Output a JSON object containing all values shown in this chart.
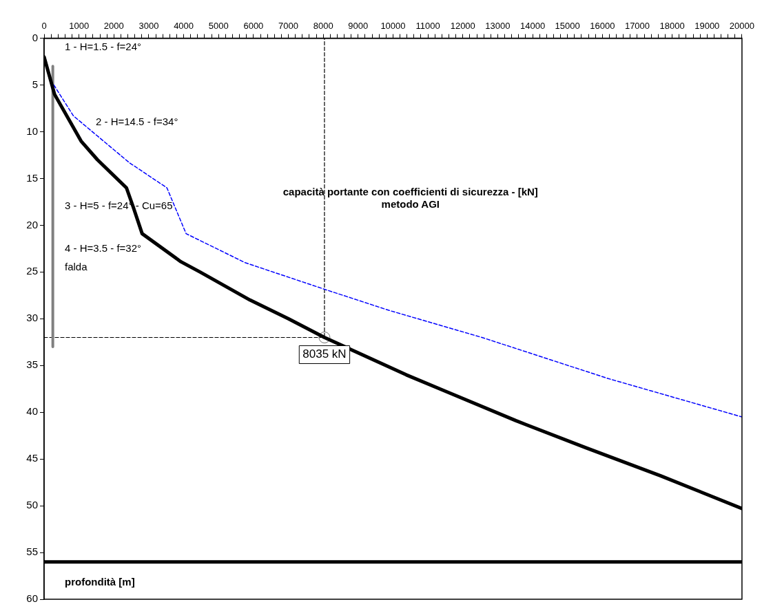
{
  "chart_data": {
    "type": "line",
    "title": "capacità portante con coefficienti di sicurezza - [kN]\nmetodo AGI",
    "ylabel": "profondità [m]",
    "xlim": [
      0,
      20000
    ],
    "ylim": [
      60,
      0
    ],
    "xticks": [
      0,
      {
        "value": 200,
        "label": null
      },
      {
        "value": 400,
        "label": null
      },
      {
        "value": 600,
        "label": null
      },
      {
        "value": 800,
        "label": null
      },
      1000,
      {
        "value": 1200,
        "label": null
      },
      {
        "value": 1400,
        "label": null
      },
      {
        "value": 1600,
        "label": null
      },
      {
        "value": 1800,
        "label": null
      },
      2000,
      {
        "value": 2200,
        "label": null
      },
      {
        "value": 2400,
        "label": null
      },
      {
        "value": 2600,
        "label": null
      },
      {
        "value": 2800,
        "label": null
      },
      3000,
      {
        "value": 3200,
        "label": null
      },
      {
        "value": 3400,
        "label": null
      },
      {
        "value": 3600,
        "label": null
      },
      {
        "value": 3800,
        "label": null
      },
      4000,
      {
        "value": 4200,
        "label": null
      },
      {
        "value": 4400,
        "label": null
      },
      {
        "value": 4600,
        "label": null
      },
      {
        "value": 4800,
        "label": null
      },
      5000,
      {
        "value": 5200,
        "label": null
      },
      {
        "value": 5400,
        "label": null
      },
      {
        "value": 5600,
        "label": null
      },
      {
        "value": 5800,
        "label": null
      },
      6000,
      {
        "value": 6200,
        "label": null
      },
      {
        "value": 6400,
        "label": null
      },
      {
        "value": 6600,
        "label": null
      },
      {
        "value": 6800,
        "label": null
      },
      7000,
      {
        "value": 7200,
        "label": null
      },
      {
        "value": 7400,
        "label": null
      },
      {
        "value": 7600,
        "label": null
      },
      {
        "value": 7800,
        "label": null
      },
      8000,
      {
        "value": 8200,
        "label": null
      },
      {
        "value": 8400,
        "label": null
      },
      {
        "value": 8600,
        "label": null
      },
      {
        "value": 8800,
        "label": null
      },
      9000,
      {
        "value": 9200,
        "label": null
      },
      {
        "value": 9400,
        "label": null
      },
      {
        "value": 9600,
        "label": null
      },
      {
        "value": 9800,
        "label": null
      },
      10000,
      {
        "value": 10200,
        "label": null
      },
      {
        "value": 10400,
        "label": null
      },
      {
        "value": 10600,
        "label": null
      },
      {
        "value": 10800,
        "label": null
      },
      11000,
      {
        "value": 11200,
        "label": null
      },
      {
        "value": 11400,
        "label": null
      },
      {
        "value": 11600,
        "label": null
      },
      {
        "value": 11800,
        "label": null
      },
      12000,
      {
        "value": 12200,
        "label": null
      },
      {
        "value": 12400,
        "label": null
      },
      {
        "value": 12600,
        "label": null
      },
      {
        "value": 12800,
        "label": null
      },
      13000,
      {
        "value": 13200,
        "label": null
      },
      {
        "value": 13400,
        "label": null
      },
      {
        "value": 13600,
        "label": null
      },
      {
        "value": 13800,
        "label": null
      },
      14000,
      {
        "value": 14200,
        "label": null
      },
      {
        "value": 14400,
        "label": null
      },
      {
        "value": 14600,
        "label": null
      },
      {
        "value": 14800,
        "label": null
      },
      15000,
      {
        "value": 15200,
        "label": null
      },
      {
        "value": 15400,
        "label": null
      },
      {
        "value": 15600,
        "label": null
      },
      {
        "value": 15800,
        "label": null
      },
      16000,
      {
        "value": 16200,
        "label": null
      },
      {
        "value": 16400,
        "label": null
      },
      {
        "value": 16600,
        "label": null
      },
      {
        "value": 16800,
        "label": null
      },
      17000,
      {
        "value": 17200,
        "label": null
      },
      {
        "value": 17400,
        "label": null
      },
      {
        "value": 17600,
        "label": null
      },
      {
        "value": 17800,
        "label": null
      },
      18000,
      {
        "value": 18200,
        "label": null
      },
      {
        "value": 18400,
        "label": null
      },
      {
        "value": 18600,
        "label": null
      },
      {
        "value": 18800,
        "label": null
      },
      19000,
      {
        "value": 19200,
        "label": null
      },
      {
        "value": 19400,
        "label": null
      },
      {
        "value": 19600,
        "label": null
      },
      {
        "value": 19800,
        "label": null
      },
      20000
    ],
    "yticks": [
      0,
      5,
      10,
      15,
      20,
      25,
      30,
      35,
      40,
      45,
      50,
      55,
      60
    ],
    "grid": false,
    "legend": false,
    "series": [
      {
        "color": "#000000",
        "marker": "none",
        "line_style": "solid",
        "x": [
          0,
          300,
          1060,
          1530,
          2360,
          2550,
          2810,
          3920,
          4470,
          5900,
          7000,
          8035,
          10380,
          11530,
          13520,
          15530,
          17670,
          20000
        ],
        "values": [
          2,
          6,
          11,
          13,
          16,
          18,
          20.9,
          23.9,
          25,
          28,
          30,
          32,
          36,
          37.8,
          40.9,
          43.8,
          46.8,
          50.3
        ]
      },
      {
        "color": "#0000ff",
        "marker": "none",
        "line_style": "dashed",
        "x": [
          280,
          840,
          2440,
          3520,
          4070,
          5760,
          8080,
          9880,
          12550,
          16170,
          20000
        ],
        "values": [
          5,
          8.3,
          13.3,
          16,
          20.9,
          24,
          26.9,
          29.1,
          32,
          36.4,
          40.5
        ]
      },
      {
        "color": "#808080",
        "marker": "none",
        "line_style": "solid",
        "x": [
          250,
          250
        ],
        "values": [
          3,
          33
        ]
      },
      {
        "color": "#000000",
        "marker": "none",
        "line_style": "dashed",
        "x": [
          0,
          8035,
          8035
        ],
        "values": [
          32,
          32,
          0
        ]
      },
      {
        "type": "scatter",
        "color": "#ffffff",
        "marker": "circle",
        "x": [
          8035
        ],
        "values": [
          32
        ]
      }
    ],
    "ref_lines": [
      {
        "axis": "y",
        "value": 56,
        "color": "#000000",
        "line_style": "solid"
      }
    ],
    "annotations": [
      {
        "text": "8035 kN",
        "x": 8035,
        "y": 32
      },
      "1 - H=1.5 - f=24°",
      "2 - H=14.5 - f=34°",
      "3 - H=5 - f=24° - Cu=65",
      "4 - H=3.5 - f=32°",
      "falda"
    ]
  }
}
